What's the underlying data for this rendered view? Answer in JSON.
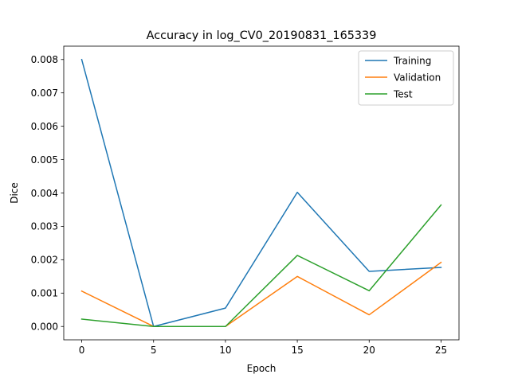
{
  "chart_data": {
    "type": "line",
    "title": "Accuracy in log_CV0_20190831_165339",
    "xlabel": "Epoch",
    "ylabel": "Dice",
    "x": [
      0,
      5,
      10,
      15,
      20,
      25
    ],
    "xticks": [
      0,
      5,
      10,
      15,
      20,
      25
    ],
    "xtick_labels": [
      "0",
      "5",
      "10",
      "15",
      "20",
      "25"
    ],
    "yticks": [
      0.0,
      0.001,
      0.002,
      0.003,
      0.004,
      0.005,
      0.006,
      0.007,
      0.008
    ],
    "ytick_labels": [
      "0.000",
      "0.001",
      "0.002",
      "0.003",
      "0.004",
      "0.005",
      "0.006",
      "0.007",
      "0.008"
    ],
    "xlim": [
      -1.25,
      26.25
    ],
    "ylim": [
      -0.0004,
      0.0084
    ],
    "grid": false,
    "legend_position": "top-right",
    "series": [
      {
        "name": "Training",
        "color": "#1f77b4",
        "values": [
          0.008,
          0.0,
          0.00055,
          0.00402,
          0.00165,
          0.00177
        ]
      },
      {
        "name": "Validation",
        "color": "#ff7f0e",
        "values": [
          0.00106,
          0.0,
          0.0,
          0.0015,
          0.00035,
          0.00192
        ]
      },
      {
        "name": "Test",
        "color": "#2ca02c",
        "values": [
          0.00022,
          0.0,
          0.0,
          0.00213,
          0.00107,
          0.00364
        ]
      }
    ]
  }
}
